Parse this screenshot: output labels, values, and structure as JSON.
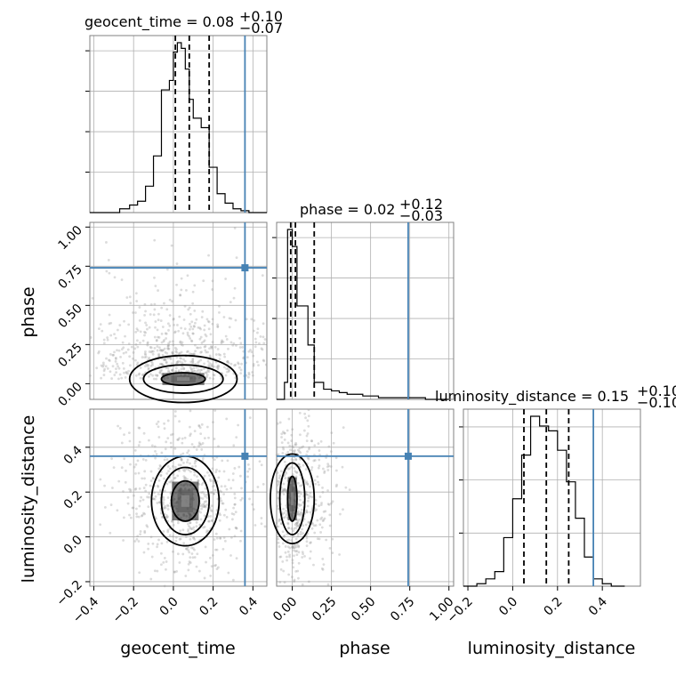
{
  "chart_data": {
    "type": "corner",
    "colors": {
      "truth": "#4682b4",
      "histogram": "#000000",
      "contour": "#000000",
      "samples": "#9a9a9a",
      "grid": "#b0b0b0"
    },
    "grid": true,
    "parameters": [
      {
        "name": "geocent_time",
        "range": [
          -0.42,
          0.47
        ],
        "ticks": [
          -0.4,
          -0.2,
          0.0,
          0.2,
          0.4
        ],
        "tick_labels": [
          "−0.4",
          "−0.2",
          "0.0",
          "0.2",
          "0.4"
        ],
        "truth": 0.36,
        "quantiles": [
          0.01,
          0.08,
          0.18
        ],
        "title": {
          "main": "geocent_time = 0.08",
          "sup": "+0.10",
          "sub": "−0.07"
        },
        "hist": {
          "edges": [
            -0.42,
            -0.37,
            -0.32,
            -0.27,
            -0.22,
            -0.18,
            -0.14,
            -0.1,
            -0.06,
            -0.02,
            0.0,
            0.02,
            0.04,
            0.06,
            0.08,
            0.1,
            0.14,
            0.18,
            0.22,
            0.26,
            0.3,
            0.34,
            0.38,
            0.42,
            0.47
          ],
          "counts": [
            0,
            0,
            0,
            2,
            4,
            6,
            14,
            30,
            65,
            70,
            85,
            90,
            87,
            76,
            60,
            50,
            45,
            24,
            10,
            5,
            2,
            1,
            0,
            0
          ]
        }
      },
      {
        "name": "phase",
        "range": [
          -0.1,
          1.03
        ],
        "ticks": [
          0.0,
          0.25,
          0.5,
          0.75,
          1.0
        ],
        "tick_labels": [
          "0.00",
          "0.25",
          "0.50",
          "0.75",
          "1.00"
        ],
        "truth": 0.74,
        "quantiles": [
          -0.01,
          0.02,
          0.14
        ],
        "title": {
          "main": "phase = 0.02",
          "sup": "+0.12",
          "sub": "−0.03"
        },
        "hist": {
          "edges": [
            -0.1,
            -0.05,
            -0.03,
            0.0,
            0.03,
            0.06,
            0.1,
            0.14,
            0.2,
            0.25,
            0.3,
            0.35,
            0.45,
            0.55,
            0.7,
            0.85,
            1.0
          ],
          "counts": [
            0,
            10,
            100,
            90,
            55,
            55,
            32,
            10,
            6,
            5,
            4,
            3,
            2,
            1,
            1,
            0
          ]
        }
      },
      {
        "name": "luminosity_distance",
        "range": [
          -0.22,
          0.57
        ],
        "ticks": [
          -0.2,
          0.0,
          0.2,
          0.4
        ],
        "tick_labels": [
          "−0.2",
          "0.0",
          "0.2",
          "0.4"
        ],
        "truth": 0.36,
        "quantiles": [
          0.05,
          0.15,
          0.25
        ],
        "title": {
          "main": "luminosity_distance = 0.15",
          "sup": "+0.10",
          "sub": "−0.10"
        },
        "hist": {
          "edges": [
            -0.22,
            -0.16,
            -0.12,
            -0.08,
            -0.04,
            0.0,
            0.04,
            0.08,
            0.12,
            0.16,
            0.2,
            0.24,
            0.28,
            0.32,
            0.36,
            0.4,
            0.44,
            0.5
          ],
          "counts": [
            0,
            1,
            3,
            6,
            20,
            36,
            54,
            70,
            66,
            64,
            56,
            43,
            28,
            12,
            3,
            1,
            0
          ]
        }
      }
    ],
    "panels_2d": [
      {
        "x": "geocent_time",
        "y": "phase",
        "center": [
          0.05,
          0.03
        ],
        "contours": [
          [
            0.11,
            0.04
          ],
          [
            0.2,
            0.09
          ],
          [
            0.27,
            0.15
          ]
        ],
        "truth_point": [
          0.36,
          0.74
        ]
      },
      {
        "x": "geocent_time",
        "y": "luminosity_distance",
        "center": [
          0.06,
          0.16
        ],
        "contours": [
          [
            0.07,
            0.09
          ],
          [
            0.12,
            0.15
          ],
          [
            0.17,
            0.2
          ]
        ],
        "truth_point": [
          0.36,
          0.36
        ]
      },
      {
        "x": "phase",
        "y": "luminosity_distance",
        "center": [
          0.0,
          0.17
        ],
        "contours": [
          [
            0.03,
            0.1
          ],
          [
            0.08,
            0.16
          ],
          [
            0.14,
            0.2
          ]
        ],
        "truth_point": [
          0.74,
          0.36
        ]
      }
    ]
  }
}
